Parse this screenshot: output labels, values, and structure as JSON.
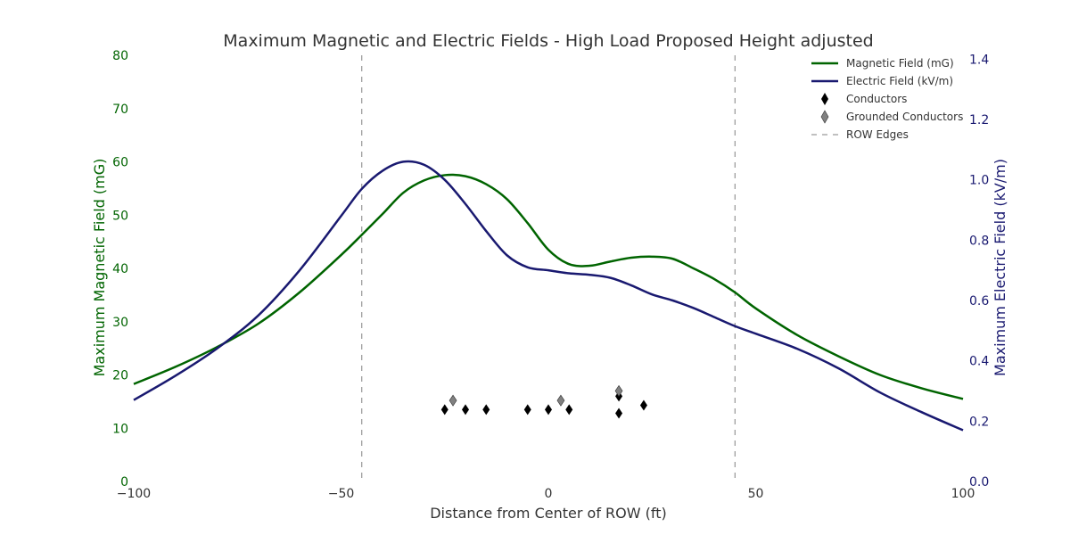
{
  "chart_data": {
    "type": "line",
    "title": "Maximum Magnetic and Electric Fields - High Load Proposed Height adjusted",
    "xlabel": "Distance from Center of ROW (ft)",
    "ylabel_left": "Maximum Magnetic Field (mG)",
    "ylabel_right": "Maximum Electric Field (kV/m)",
    "xlim": [
      -100,
      100
    ],
    "ylim_left": [
      0,
      80
    ],
    "ylim_right": [
      0,
      1.5
    ],
    "x_ticks": [
      {
        "value": -100,
        "label": "−100"
      },
      {
        "value": -50,
        "label": "−50"
      },
      {
        "value": 0,
        "label": "0"
      },
      {
        "value": 50,
        "label": "50"
      },
      {
        "value": 100,
        "label": "100"
      }
    ],
    "y_left_ticks": [
      {
        "value": 0,
        "label": "0"
      },
      {
        "value": 10,
        "label": "10"
      },
      {
        "value": 20,
        "label": "20"
      },
      {
        "value": 30,
        "label": "30"
      },
      {
        "value": 40,
        "label": "40"
      },
      {
        "value": 50,
        "label": "50"
      },
      {
        "value": 60,
        "label": "60"
      },
      {
        "value": 70,
        "label": "70"
      },
      {
        "value": 80,
        "label": "80"
      }
    ],
    "y_right_ticks": [
      {
        "value": 0,
        "label": "0.0"
      },
      {
        "value": 0.2,
        "label": "0.2"
      },
      {
        "value": 0.4,
        "label": "0.4"
      },
      {
        "value": 0.6,
        "label": "0.6"
      },
      {
        "value": 0.8,
        "label": "0.8"
      },
      {
        "value": 1.0,
        "label": "1.0"
      },
      {
        "value": 1.2,
        "label": "1.2"
      },
      {
        "value": 1.4,
        "label": "1.4"
      }
    ],
    "grid": false,
    "legend_position": "top-right",
    "series": [
      {
        "name": "Magnetic Field (mG)",
        "axis": "left",
        "color": "#006400",
        "x": [
          -100,
          -90,
          -80,
          -70,
          -60,
          -50,
          -45,
          -40,
          -35,
          -30,
          -25,
          -20,
          -15,
          -10,
          -5,
          0,
          5,
          10,
          15,
          20,
          25,
          30,
          35,
          40,
          45,
          50,
          60,
          70,
          80,
          90,
          100
        ],
        "y": [
          18.3,
          21.5,
          25.2,
          29.6,
          35.5,
          42.5,
          46.3,
          50.2,
          54.2,
          56.5,
          57.5,
          57.3,
          55.8,
          53.0,
          48.5,
          43.5,
          40.8,
          40.5,
          41.3,
          42.0,
          42.2,
          41.8,
          40.0,
          38.0,
          35.5,
          32.5,
          27.5,
          23.5,
          20.0,
          17.5,
          15.5
        ]
      },
      {
        "name": "Electric Field (kV/m)",
        "axis": "right",
        "color": "#191970",
        "x": [
          -100,
          -90,
          -80,
          -70,
          -60,
          -50,
          -45,
          -40,
          -35,
          -30,
          -25,
          -20,
          -15,
          -10,
          -5,
          0,
          5,
          10,
          15,
          20,
          25,
          30,
          35,
          40,
          45,
          50,
          60,
          70,
          80,
          90,
          100
        ],
        "y": [
          0.27,
          0.35,
          0.44,
          0.55,
          0.7,
          0.88,
          0.97,
          1.03,
          1.06,
          1.05,
          1.0,
          0.92,
          0.83,
          0.75,
          0.71,
          0.7,
          0.69,
          0.685,
          0.675,
          0.65,
          0.62,
          0.6,
          0.575,
          0.545,
          0.515,
          0.49,
          0.44,
          0.375,
          0.295,
          0.23,
          0.17
        ]
      }
    ],
    "conductors": {
      "name": "Conductors",
      "points": [
        {
          "x": -25,
          "y": 13.5
        },
        {
          "x": -20,
          "y": 13.5
        },
        {
          "x": -15,
          "y": 13.5
        },
        {
          "x": -5,
          "y": 13.5
        },
        {
          "x": 0,
          "y": 13.5
        },
        {
          "x": 5,
          "y": 13.5
        },
        {
          "x": 17,
          "y": 16.0
        },
        {
          "x": 17,
          "y": 12.8
        },
        {
          "x": 23,
          "y": 14.3
        }
      ]
    },
    "grounded_conductors": {
      "name": "Grounded Conductors",
      "points": [
        {
          "x": -23,
          "y": 15.2
        },
        {
          "x": 3,
          "y": 15.2
        },
        {
          "x": 17,
          "y": 17.0
        }
      ]
    },
    "row_edges": {
      "name": "ROW Edges",
      "x": [
        -45,
        45
      ]
    },
    "colors": {
      "magnetic": "#006400",
      "electric": "#191970",
      "conductor": "#000000",
      "grounded": "#808080",
      "row_edge": "#808080"
    }
  }
}
